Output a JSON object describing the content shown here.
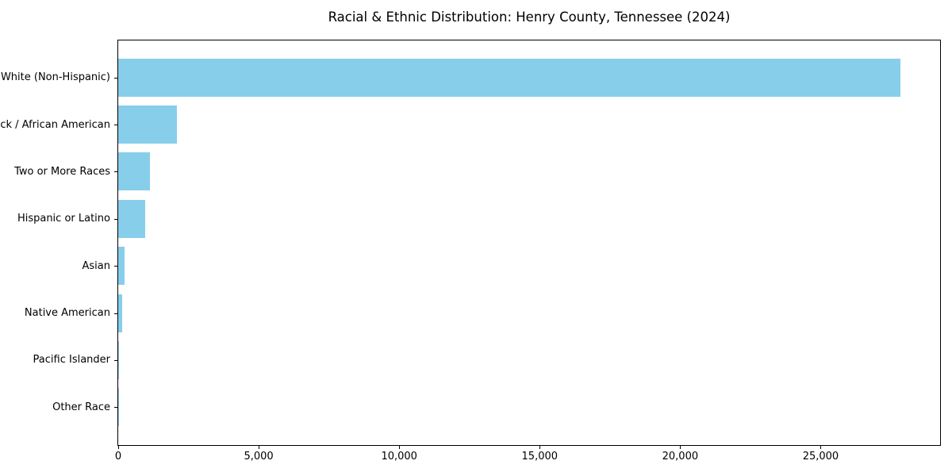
{
  "title": "Racial & Ethnic Distribution: Henry County, Tennessee (2024)",
  "chart_data": {
    "type": "bar",
    "orientation": "horizontal",
    "title": "Racial & Ethnic Distribution: Henry County, Tennessee (2024)",
    "categories": [
      "White (Non-Hispanic)",
      "Black / African American",
      "Two or More Races",
      "Hispanic or Latino",
      "Asian",
      "Native American",
      "Pacific Islander",
      "Other Race"
    ],
    "values": [
      27850,
      2100,
      1120,
      960,
      215,
      130,
      15,
      10
    ],
    "xlabel": "",
    "ylabel": "",
    "xlim": [
      0,
      29250
    ],
    "xticks": [
      0,
      5000,
      10000,
      15000,
      20000,
      25000
    ],
    "xtick_labels": [
      "0",
      "5,000",
      "10,000",
      "15,000",
      "20,000",
      "25,000"
    ],
    "bar_color": "#87CEEB",
    "grid": false,
    "legend": null
  }
}
